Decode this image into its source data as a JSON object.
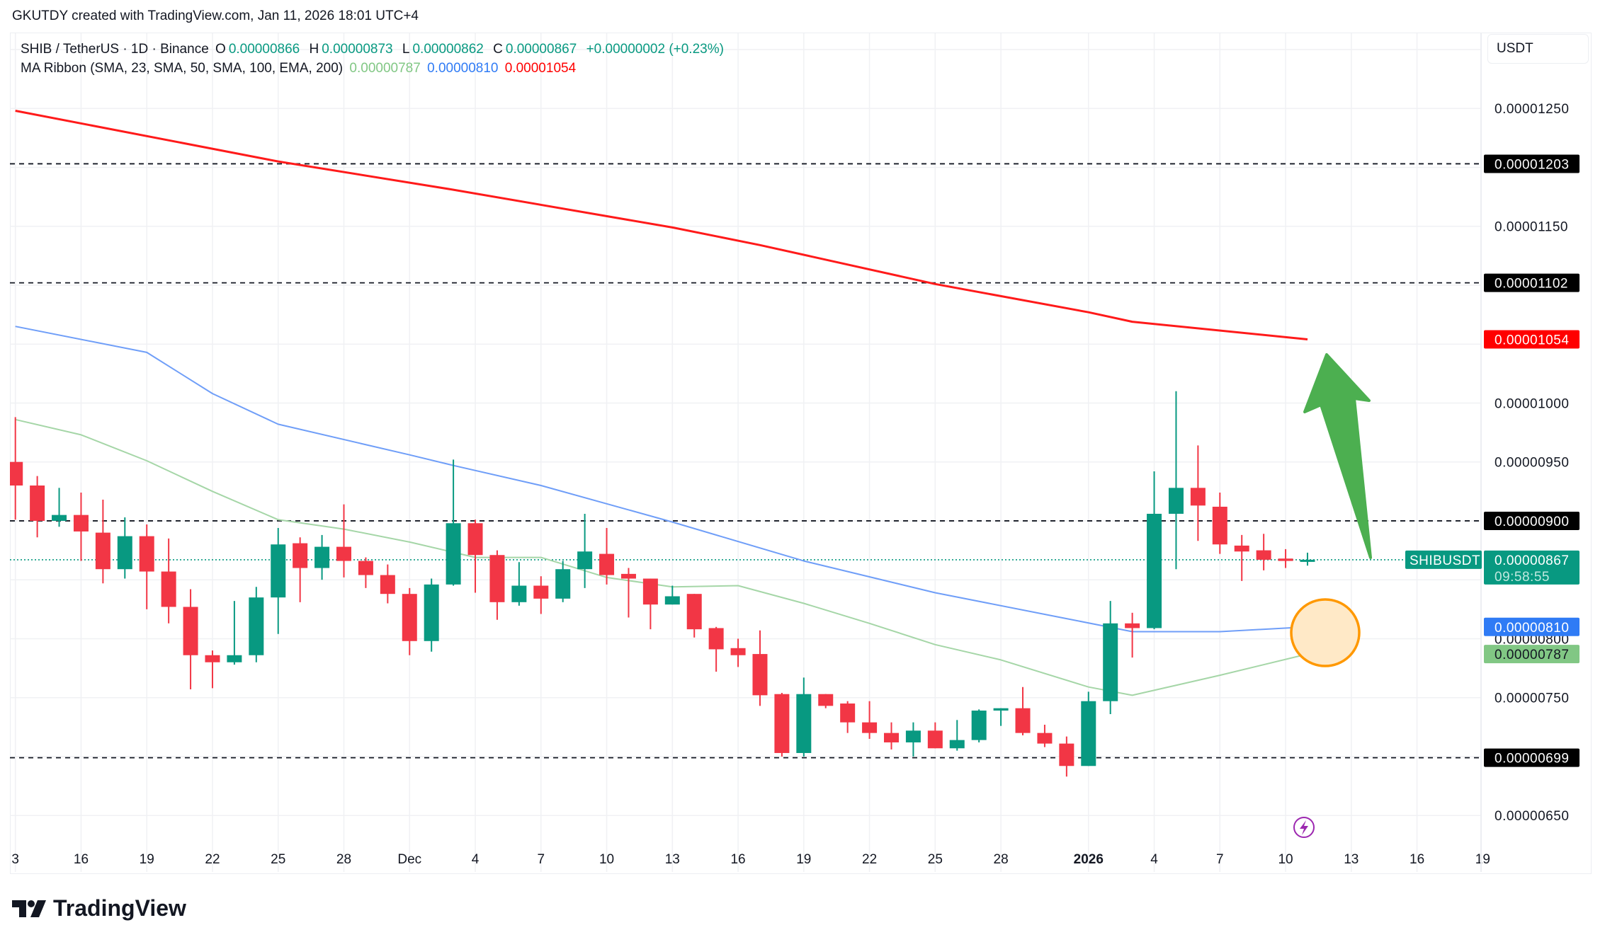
{
  "header": {
    "credit": "GKUTDY created with TradingView.com, Jan 11, 2026 18:01 UTC+4"
  },
  "legend": {
    "symbol": "SHIB / TetherUS · 1D · Binance",
    "o_label": "O",
    "o": "0.00000866",
    "h_label": "H",
    "h": "0.00000873",
    "l_label": "L",
    "l": "0.00000862",
    "c_label": "C",
    "c": "0.00000867",
    "change": "+0.00000002 (+0.23%)",
    "ma_title": "MA Ribbon (SMA, 23, SMA, 50, SMA, 100, EMA, 200)",
    "ma23": "0.00000787",
    "ma50": "0.00000810",
    "ema200": "0.00001054"
  },
  "currency_button": "USDT",
  "brand": "TradingView",
  "colors": {
    "up": "#089981",
    "down": "#f23645",
    "sma23": "#81c784",
    "sma50": "#2f7bf5",
    "ema200": "#ff0000",
    "annotation_arrow": "#4caf50",
    "annotation_circle": "#ff9800"
  },
  "chart_data": {
    "type": "candlestick",
    "ylim": [
      6.2e-06,
      1.3e-05
    ],
    "y_ticks": [
      "0.00001250",
      "0.00001150",
      "0.00001000",
      "0.00000950",
      "0.00000800",
      "0.00000750",
      "0.00000650"
    ],
    "x_ticks": [
      {
        "date": "2025-11-13",
        "label": "3"
      },
      {
        "date": "2025-11-16",
        "label": "16"
      },
      {
        "date": "2025-11-19",
        "label": "19"
      },
      {
        "date": "2025-11-22",
        "label": "22"
      },
      {
        "date": "2025-11-25",
        "label": "25"
      },
      {
        "date": "2025-11-28",
        "label": "28"
      },
      {
        "date": "2025-12-01",
        "label": "Dec"
      },
      {
        "date": "2025-12-04",
        "label": "4"
      },
      {
        "date": "2025-12-07",
        "label": "7"
      },
      {
        "date": "2025-12-10",
        "label": "10"
      },
      {
        "date": "2025-12-13",
        "label": "13"
      },
      {
        "date": "2025-12-16",
        "label": "16"
      },
      {
        "date": "2025-12-19",
        "label": "19"
      },
      {
        "date": "2025-12-22",
        "label": "22"
      },
      {
        "date": "2025-12-25",
        "label": "25"
      },
      {
        "date": "2025-12-28",
        "label": "28"
      },
      {
        "date": "2026-01-01",
        "label": "2026",
        "bold": true
      },
      {
        "date": "2026-01-04",
        "label": "4"
      },
      {
        "date": "2026-01-07",
        "label": "7"
      },
      {
        "date": "2026-01-10",
        "label": "10"
      },
      {
        "date": "2026-01-13",
        "label": "13"
      },
      {
        "date": "2026-01-16",
        "label": "16"
      },
      {
        "date": "2026-01-19",
        "label": "19"
      }
    ],
    "candles_columns": [
      "date",
      "open",
      "high",
      "low",
      "close"
    ],
    "candles": [
      [
        "2025-11-13",
        9.5e-06,
        9.88e-06,
        9.01e-06,
        9.3e-06
      ],
      [
        "2025-11-14",
        9.3e-06,
        9.38e-06,
        8.86e-06,
        9e-06
      ],
      [
        "2025-11-15",
        9e-06,
        9.28e-06,
        8.95e-06,
        9.05e-06
      ],
      [
        "2025-11-16",
        9.05e-06,
        9.24e-06,
        8.66e-06,
        8.91e-06
      ],
      [
        "2025-11-17",
        8.9e-06,
        9.18e-06,
        8.47e-06,
        8.59e-06
      ],
      [
        "2025-11-18",
        8.59e-06,
        9.03e-06,
        8.51e-06,
        8.87e-06
      ],
      [
        "2025-11-19",
        8.87e-06,
        8.97e-06,
        8.25e-06,
        8.57e-06
      ],
      [
        "2025-11-20",
        8.57e-06,
        8.85e-06,
        8.13e-06,
        8.27e-06
      ],
      [
        "2025-11-21",
        8.27e-06,
        8.42e-06,
        7.57e-06,
        7.86e-06
      ],
      [
        "2025-11-22",
        7.86e-06,
        7.9e-06,
        7.58e-06,
        7.8e-06
      ],
      [
        "2025-11-23",
        7.8e-06,
        8.32e-06,
        7.78e-06,
        7.86e-06
      ],
      [
        "2025-11-24",
        7.86e-06,
        8.44e-06,
        7.8e-06,
        8.35e-06
      ],
      [
        "2025-11-25",
        8.35e-06,
        8.94e-06,
        8.04e-06,
        8.8e-06
      ],
      [
        "2025-11-26",
        8.81e-06,
        8.86e-06,
        8.31e-06,
        8.6e-06
      ],
      [
        "2025-11-27",
        8.6e-06,
        8.88e-06,
        8.5e-06,
        8.78e-06
      ],
      [
        "2025-11-28",
        8.78e-06,
        9.14e-06,
        8.52e-06,
        8.66e-06
      ],
      [
        "2025-11-29",
        8.66e-06,
        8.69e-06,
        8.43e-06,
        8.54e-06
      ],
      [
        "2025-11-30",
        8.54e-06,
        8.63e-06,
        8.3e-06,
        8.38e-06
      ],
      [
        "2025-12-01",
        8.38e-06,
        8.43e-06,
        7.86e-06,
        7.98e-06
      ],
      [
        "2025-12-02",
        7.98e-06,
        8.51e-06,
        7.89e-06,
        8.46e-06
      ],
      [
        "2025-12-03",
        8.46e-06,
        9.52e-06,
        8.45e-06,
        8.98e-06
      ],
      [
        "2025-12-04",
        8.98e-06,
        9.01e-06,
        8.39e-06,
        8.71e-06
      ],
      [
        "2025-12-05",
        8.71e-06,
        8.75e-06,
        8.16e-06,
        8.31e-06
      ],
      [
        "2025-12-06",
        8.31e-06,
        8.65e-06,
        8.28e-06,
        8.45e-06
      ],
      [
        "2025-12-07",
        8.45e-06,
        8.53e-06,
        8.21e-06,
        8.34e-06
      ],
      [
        "2025-12-08",
        8.34e-06,
        8.66e-06,
        8.31e-06,
        8.59e-06
      ],
      [
        "2025-12-09",
        8.59e-06,
        9.06e-06,
        8.43e-06,
        8.74e-06
      ],
      [
        "2025-12-10",
        8.72e-06,
        8.94e-06,
        8.46e-06,
        8.54e-06
      ],
      [
        "2025-12-11",
        8.55e-06,
        8.6e-06,
        8.18e-06,
        8.51e-06
      ],
      [
        "2025-12-12",
        8.51e-06,
        8.51e-06,
        8.08e-06,
        8.29e-06
      ],
      [
        "2025-12-13",
        8.29e-06,
        8.45e-06,
        8.29e-06,
        8.36e-06
      ],
      [
        "2025-12-14",
        8.38e-06,
        8.38e-06,
        8.01e-06,
        8.08e-06
      ],
      [
        "2025-12-15",
        8.09e-06,
        8.1e-06,
        7.72e-06,
        7.91e-06
      ],
      [
        "2025-12-16",
        7.92e-06,
        8e-06,
        7.76e-06,
        7.86e-06
      ],
      [
        "2025-12-17",
        7.87e-06,
        8.07e-06,
        7.43e-06,
        7.52e-06
      ],
      [
        "2025-12-18",
        7.53e-06,
        7.54e-06,
        7e-06,
        7.03e-06
      ],
      [
        "2025-12-19",
        7.03e-06,
        7.67e-06,
        7e-06,
        7.53e-06
      ],
      [
        "2025-12-20",
        7.53e-06,
        7.53e-06,
        7.41e-06,
        7.43e-06
      ],
      [
        "2025-12-21",
        7.45e-06,
        7.47e-06,
        7.2e-06,
        7.29e-06
      ],
      [
        "2025-12-22",
        7.29e-06,
        7.47e-06,
        7.15e-06,
        7.2e-06
      ],
      [
        "2025-12-23",
        7.2e-06,
        7.29e-06,
        7.06e-06,
        7.12e-06
      ],
      [
        "2025-12-24",
        7.12e-06,
        7.29e-06,
        7e-06,
        7.22e-06
      ],
      [
        "2025-12-25",
        7.22e-06,
        7.29e-06,
        7.07e-06,
        7.07e-06
      ],
      [
        "2025-12-26",
        7.07e-06,
        7.31e-06,
        7.05e-06,
        7.14e-06
      ],
      [
        "2025-12-27",
        7.14e-06,
        7.4e-06,
        7.12e-06,
        7.39e-06
      ],
      [
        "2025-12-28",
        7.39e-06,
        7.41e-06,
        7.26e-06,
        7.41e-06
      ],
      [
        "2025-12-29",
        7.41e-06,
        7.59e-06,
        7.18e-06,
        7.2e-06
      ],
      [
        "2025-12-30",
        7.2e-06,
        7.27e-06,
        7.08e-06,
        7.11e-06
      ],
      [
        "2025-12-31",
        7.11e-06,
        7.17e-06,
        6.83e-06,
        6.92e-06
      ],
      [
        "2026-01-01",
        6.92e-06,
        7.55e-06,
        6.92e-06,
        7.47e-06
      ],
      [
        "2026-01-02",
        7.47e-06,
        8.32e-06,
        7.36e-06,
        8.13e-06
      ],
      [
        "2026-01-03",
        8.13e-06,
        8.22e-06,
        7.84e-06,
        8.09e-06
      ],
      [
        "2026-01-04",
        8.09e-06,
        9.42e-06,
        8.08e-06,
        9.06e-06
      ],
      [
        "2026-01-05",
        9.06e-06,
        1.01e-05,
        8.59e-06,
        9.28e-06
      ],
      [
        "2026-01-06",
        9.28e-06,
        9.64e-06,
        8.83e-06,
        9.13e-06
      ],
      [
        "2026-01-07",
        9.12e-06,
        9.24e-06,
        8.72e-06,
        8.8e-06
      ],
      [
        "2026-01-08",
        8.79e-06,
        8.88e-06,
        8.49e-06,
        8.74e-06
      ],
      [
        "2026-01-09",
        8.75e-06,
        8.89e-06,
        8.58e-06,
        8.67e-06
      ],
      [
        "2026-01-10",
        8.68e-06,
        8.76e-06,
        8.6e-06,
        8.66e-06
      ],
      [
        "2026-01-11",
        8.66e-06,
        8.73e-06,
        8.62e-06,
        8.67e-06
      ]
    ],
    "ma_lines": [
      {
        "name": "SMA 23",
        "color": "#a5d6a7",
        "points": [
          [
            "2025-11-13",
            9.86e-06
          ],
          [
            "2025-11-16",
            9.73e-06
          ],
          [
            "2025-11-19",
            9.51e-06
          ],
          [
            "2025-11-22",
            9.25e-06
          ],
          [
            "2025-11-25",
            9.01e-06
          ],
          [
            "2025-11-28",
            8.93e-06
          ],
          [
            "2025-12-01",
            8.82e-06
          ],
          [
            "2025-12-04",
            8.69e-06
          ],
          [
            "2025-12-07",
            8.69e-06
          ],
          [
            "2025-12-10",
            8.52e-06
          ],
          [
            "2025-12-13",
            8.44e-06
          ],
          [
            "2025-12-16",
            8.45e-06
          ],
          [
            "2025-12-19",
            8.3e-06
          ],
          [
            "2025-12-22",
            8.13e-06
          ],
          [
            "2025-12-25",
            7.95e-06
          ],
          [
            "2025-12-28",
            7.82e-06
          ],
          [
            "2026-01-01",
            7.59e-06
          ],
          [
            "2026-01-03",
            7.52e-06
          ],
          [
            "2026-01-07",
            7.69e-06
          ],
          [
            "2026-01-11",
            7.87e-06
          ]
        ]
      },
      {
        "name": "SMA 50",
        "color": "#6f9ef8",
        "points": [
          [
            "2025-11-13",
            1.065e-05
          ],
          [
            "2025-11-19",
            1.043e-05
          ],
          [
            "2025-11-22",
            1.008e-05
          ],
          [
            "2025-11-25",
            9.82e-06
          ],
          [
            "2025-12-01",
            9.56e-06
          ],
          [
            "2025-12-03",
            9.47e-06
          ],
          [
            "2025-12-07",
            9.3e-06
          ],
          [
            "2025-12-13",
            8.99e-06
          ],
          [
            "2025-12-19",
            8.66e-06
          ],
          [
            "2025-12-25",
            8.39e-06
          ],
          [
            "2025-12-31",
            8.17e-06
          ],
          [
            "2026-01-03",
            8.06e-06
          ],
          [
            "2026-01-07",
            8.06e-06
          ],
          [
            "2026-01-11",
            8.1e-06
          ]
        ]
      },
      {
        "name": "EMA 200",
        "color": "#ff1a1a",
        "points": [
          [
            "2025-11-13",
            1.248e-05
          ],
          [
            "2025-11-25",
            1.205e-05
          ],
          [
            "2025-12-03",
            1.181e-05
          ],
          [
            "2025-12-13",
            1.149e-05
          ],
          [
            "2025-12-17",
            1.134e-05
          ],
          [
            "2025-12-25",
            1.101e-05
          ],
          [
            "2026-01-01",
            1.077e-05
          ],
          [
            "2026-01-03",
            1.069e-05
          ],
          [
            "2026-01-11",
            1.054e-05
          ]
        ]
      }
    ],
    "horizontal_levels": [
      "0.00001203",
      "0.00001102",
      "0.00000900",
      "0.00000699"
    ],
    "price_tags": [
      {
        "value": "0.00001054",
        "bg": "#ff0000",
        "fg": "#ffffff"
      },
      {
        "value": "0.00000810",
        "bg": "#2f7bf5",
        "fg": "#ffffff"
      },
      {
        "value": "0.00000787",
        "bg": "#81c784",
        "fg": "#131722"
      }
    ],
    "last_price": {
      "value": "0.00000867",
      "symbol": "SHIBUSDT",
      "countdown": "09:58:55",
      "bg": "#089981"
    }
  }
}
